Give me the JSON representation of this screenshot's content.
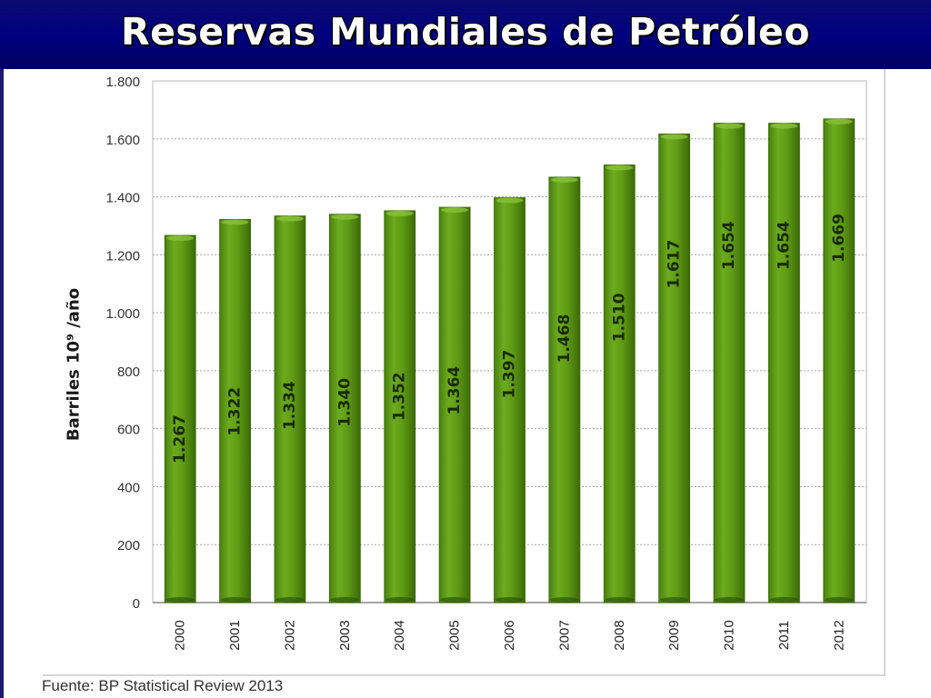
{
  "slide": {
    "title": "Reservas Mundiales de Petróleo",
    "source": "Fuente: BP Statistical Review 2013"
  },
  "colors": {
    "title_bar": "#000080",
    "bar_fill": "#5e9a14",
    "bar_light": "#7ab82a",
    "bar_dark": "#3c6a08",
    "grid": "#a8a8a8"
  },
  "chart_data": {
    "type": "bar",
    "title": "",
    "xlabel": "",
    "ylabel": "Barriles 10⁹ /año",
    "ylim": [
      0,
      1800
    ],
    "y_ticks": [
      0,
      200,
      400,
      600,
      800,
      1000,
      1200,
      1400,
      1600,
      1800
    ],
    "y_tick_labels": [
      "0",
      "200",
      "400",
      "600",
      "800",
      "1.000",
      "1.200",
      "1.400",
      "1.600",
      "1.800"
    ],
    "grid": true,
    "categories": [
      "2000",
      "2001",
      "2002",
      "2003",
      "2004",
      "2005",
      "2006",
      "2007",
      "2008",
      "2009",
      "2010",
      "2011",
      "2012"
    ],
    "values": [
      1267,
      1322,
      1334,
      1340,
      1352,
      1364,
      1397,
      1468,
      1510,
      1617,
      1654,
      1654,
      1669
    ],
    "value_labels": [
      "1.267",
      "1.322",
      "1.334",
      "1.340",
      "1.352",
      "1.364",
      "1.397",
      "1.468",
      "1.510",
      "1.617",
      "1.654",
      "1.654",
      "1.669"
    ]
  }
}
